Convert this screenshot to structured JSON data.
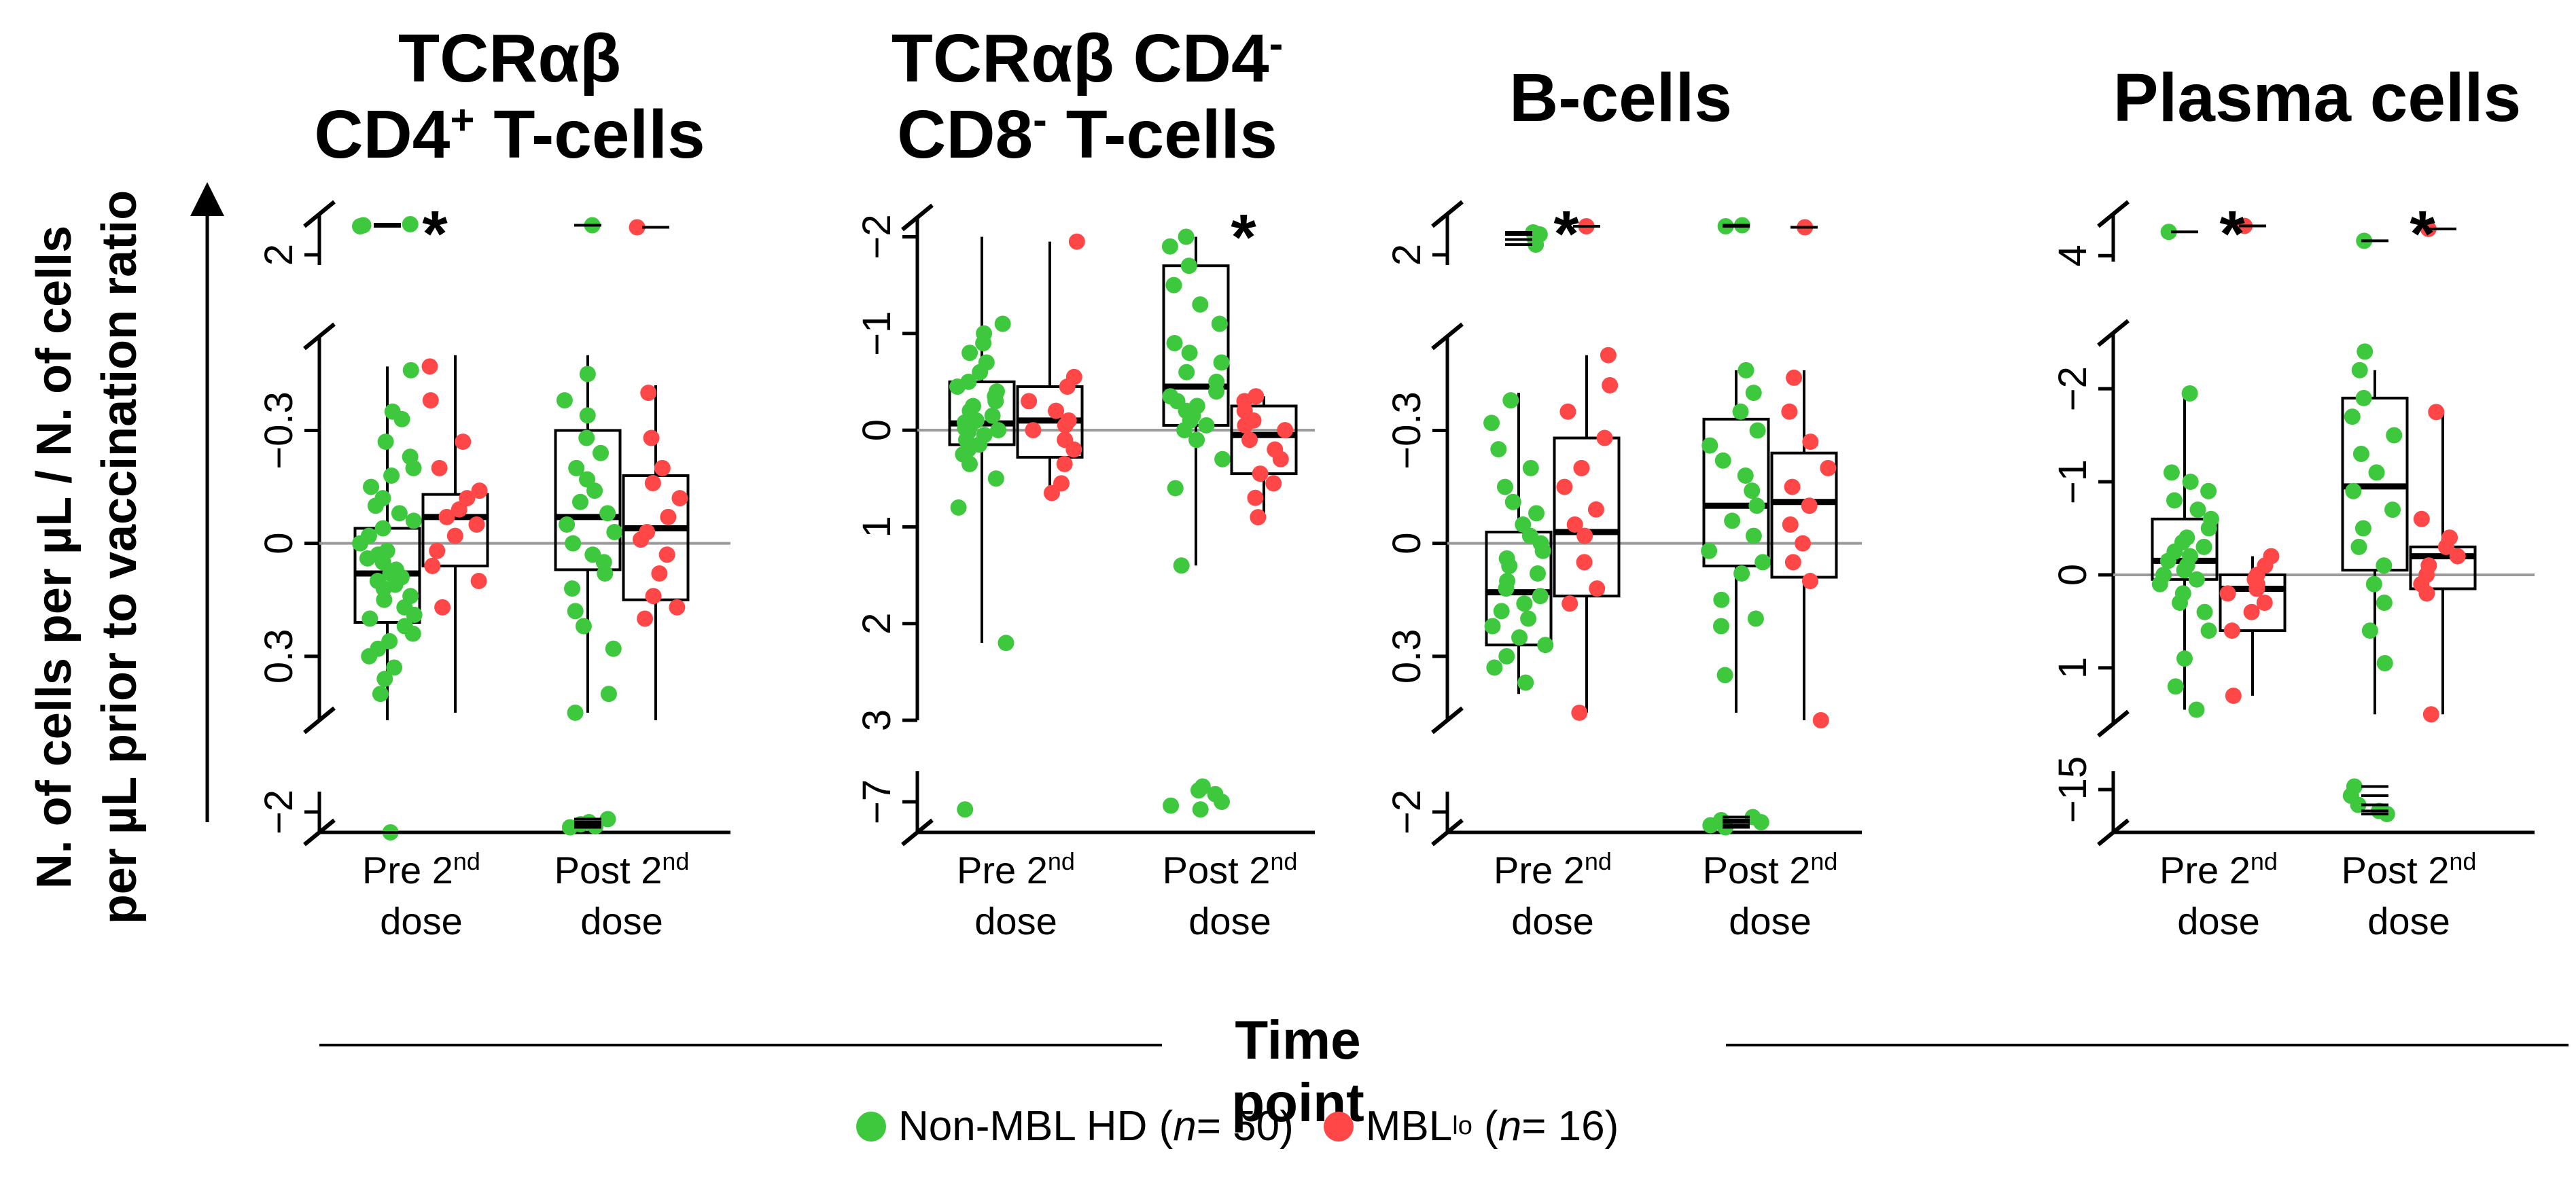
{
  "figure": {
    "y_axis_label_line1": "N. of cells per µL / N. of cells",
    "y_axis_label_line2": "per µL prior to vaccination ratio",
    "x_axis_label": "Time point",
    "legend": {
      "group1": {
        "label": "Non-MBL HD",
        "n_text": "n",
        "n_value": " = 50",
        "color": "#3ec83e"
      },
      "group2": {
        "label": "MBL",
        "sup": "lo",
        "n_text": "n",
        "n_value": " = 16",
        "color": "#ff4747"
      }
    },
    "time_points": [
      {
        "line1": "Pre 2",
        "sup": "nd",
        "line2": "dose"
      },
      {
        "line1": "Post 2",
        "sup": "nd",
        "line2": "dose"
      }
    ],
    "colors": {
      "non_mbl": "#3ec83e",
      "mbl": "#ff4747",
      "axis": "#000000",
      "zero_line": "#9a9a9a"
    }
  },
  "chart_data": [
    {
      "type": "box",
      "title_line1": "TCRαβ",
      "title_line2_prefix": "CD4",
      "title_line2_sup": "+",
      "title_line2_suffix": " T-cells",
      "segments": [
        {
          "range": [
            -2.2,
            -1.8
          ],
          "ticks": [
            {
              "v": -2,
              "label": "−2"
            }
          ]
        },
        {
          "range": [
            -0.55,
            0.47
          ],
          "ticks": [
            {
              "v": -0.3,
              "label": "−0.3"
            },
            {
              "v": 0,
              "label": "0"
            },
            {
              "v": 0.3,
              "label": "0.3"
            }
          ]
        },
        {
          "range": [
            1.6,
            2.1
          ],
          "ticks": [
            {
              "v": 2,
              "label": "2"
            }
          ]
        }
      ],
      "significance": [
        "*",
        ""
      ],
      "groups": [
        {
          "time": "Pre 2nd dose",
          "series": "Non-MBL HD",
          "min": -0.47,
          "q1": -0.04,
          "median": 0.08,
          "q3": 0.21,
          "max": 0.47,
          "points": [
            1.72,
            1.7,
            1.71,
            -1.8,
            0.4,
            0.36,
            0.33,
            0.3,
            0.28,
            0.26,
            0.24,
            0.22,
            0.2,
            0.19,
            0.17,
            0.15,
            0.14,
            0.12,
            0.11,
            0.1,
            0.09,
            0.08,
            0.07,
            0.05,
            0.04,
            0.03,
            0.02,
            0.0,
            -0.02,
            -0.04,
            -0.06,
            -0.08,
            -0.1,
            -0.12,
            -0.15,
            -0.18,
            -0.2,
            -0.23,
            -0.27,
            -0.33,
            -0.35,
            -0.46
          ]
        },
        {
          "time": "Pre 2nd dose",
          "series": "MBLlo",
          "min": -0.5,
          "q1": -0.13,
          "median": -0.07,
          "q3": 0.06,
          "max": 0.45,
          "points": [
            0.17,
            0.1,
            0.06,
            0.02,
            -0.02,
            -0.05,
            -0.07,
            -0.09,
            -0.12,
            -0.14,
            -0.2,
            -0.27,
            -0.38,
            -0.47
          ]
        },
        {
          "time": "Post 2nd dose",
          "series": "Non-MBL HD",
          "min": -0.5,
          "q1": -0.3,
          "median": -0.07,
          "q3": 0.07,
          "max": 0.45,
          "points": [
            1.71,
            -1.85,
            -1.9,
            -1.88,
            -1.93,
            -1.86,
            0.45,
            0.4,
            0.28,
            0.22,
            0.18,
            0.12,
            0.08,
            0.05,
            0.03,
            0.0,
            -0.03,
            -0.05,
            -0.08,
            -0.11,
            -0.14,
            -0.17,
            -0.2,
            -0.24,
            -0.28,
            -0.34,
            -0.38,
            -0.45
          ]
        },
        {
          "time": "Post 2nd dose",
          "series": "MBLlo",
          "min": -0.42,
          "q1": -0.18,
          "median": -0.04,
          "q3": 0.15,
          "max": 0.5,
          "points": [
            1.73,
            0.2,
            0.17,
            0.14,
            0.08,
            0.03,
            -0.01,
            -0.03,
            -0.07,
            -0.12,
            -0.16,
            -0.2,
            -0.28,
            -0.4
          ]
        }
      ]
    },
    {
      "type": "box",
      "title_line1_prefix": "TCRαβ CD4",
      "title_line1_sup": "-",
      "title_line2_prefix": "CD8",
      "title_line2_sup": "-",
      "title_line2_suffix": " T-cells",
      "segments": [
        {
          "range": [
            -7.4,
            -6.6
          ],
          "ticks": [
            {
              "v": -7,
              "label": "−7"
            }
          ]
        },
        {
          "range": [
            -2.2,
            3.0
          ],
          "ticks": [
            {
              "v": -2,
              "label": "−2"
            },
            {
              "v": -1,
              "label": "−1"
            },
            {
              "v": 0,
              "label": "0"
            },
            {
              "v": 1,
              "label": "1"
            },
            {
              "v": 2,
              "label": "2"
            },
            {
              "v": 3,
              "label": "3"
            }
          ]
        }
      ],
      "significance": [
        "",
        "*"
      ],
      "groups": [
        {
          "time": "Pre 2nd dose",
          "series": "Non-MBL HD",
          "min": -2.0,
          "q1": -0.5,
          "median": -0.07,
          "q3": 0.15,
          "max": 2.2,
          "points": [
            2.2,
            -6.9,
            0.8,
            0.5,
            0.35,
            0.25,
            0.2,
            0.15,
            0.1,
            0.05,
            0.02,
            0.0,
            -0.02,
            -0.05,
            -0.08,
            -0.1,
            -0.12,
            -0.15,
            -0.2,
            -0.25,
            -0.3,
            -0.35,
            -0.4,
            -0.45,
            -0.5,
            -0.6,
            -0.7,
            -0.8,
            -0.9,
            -1.0,
            -1.1
          ]
        },
        {
          "time": "Pre 2nd dose",
          "series": "MBLlo",
          "min": -1.95,
          "q1": -0.45,
          "median": -0.1,
          "q3": 0.28,
          "max": 0.65,
          "points": [
            0.65,
            0.55,
            0.35,
            0.2,
            0.1,
            0.0,
            -0.05,
            -0.1,
            -0.2,
            -0.3,
            -0.45,
            -0.55,
            -1.95
          ]
        },
        {
          "time": "Post 2nd dose",
          "series": "Non-MBL HD",
          "min": -2.0,
          "q1": -1.7,
          "median": -0.45,
          "q3": -0.05,
          "max": 1.4,
          "points": [
            1.4,
            0.6,
            0.3,
            0.1,
            0.0,
            -0.05,
            -0.1,
            -0.15,
            -0.2,
            -0.25,
            -0.3,
            -0.35,
            -0.4,
            -0.5,
            -0.6,
            -0.7,
            -0.8,
            -0.9,
            -1.1,
            -1.3,
            -1.5,
            -1.7,
            -1.9,
            -2.0,
            -6.9,
            -7.0,
            -7.1,
            -7.2,
            -7.15,
            -6.95
          ]
        },
        {
          "time": "Post 2nd dose",
          "series": "MBLlo",
          "min": -0.35,
          "q1": -0.25,
          "median": 0.05,
          "q3": 0.45,
          "max": 0.9,
          "points": [
            0.9,
            0.7,
            0.55,
            0.45,
            0.3,
            0.2,
            0.1,
            0.0,
            -0.05,
            -0.1,
            -0.2,
            -0.3,
            -0.35
          ]
        }
      ]
    },
    {
      "type": "box",
      "title_line1": "B-cells",
      "segments": [
        {
          "range": [
            -2.2,
            -1.8
          ],
          "ticks": [
            {
              "v": -2,
              "label": "−2"
            }
          ]
        },
        {
          "range": [
            -0.55,
            0.47
          ],
          "ticks": [
            {
              "v": -0.3,
              "label": "−0.3"
            },
            {
              "v": 0,
              "label": "0"
            },
            {
              "v": 0.3,
              "label": "0.3"
            }
          ]
        },
        {
          "range": [
            1.6,
            2.1
          ],
          "ticks": [
            {
              "v": 2,
              "label": "2"
            }
          ]
        }
      ],
      "significance": [
        "*",
        ""
      ],
      "groups": [
        {
          "time": "Pre 2nd dose",
          "series": "Non-MBL HD",
          "min": -0.4,
          "q1": -0.03,
          "median": 0.13,
          "q3": 0.27,
          "max": 0.4,
          "points": [
            1.9,
            1.85,
            1.8,
            1.78,
            0.37,
            0.33,
            0.3,
            0.27,
            0.25,
            0.22,
            0.2,
            0.18,
            0.16,
            0.14,
            0.12,
            0.1,
            0.08,
            0.06,
            0.04,
            0.02,
            0.0,
            -0.02,
            -0.05,
            -0.08,
            -0.11,
            -0.15,
            -0.2,
            -0.25,
            -0.32,
            -0.38
          ]
        },
        {
          "time": "Pre 2nd dose",
          "series": "MBLlo",
          "min": -0.5,
          "q1": -0.28,
          "median": -0.03,
          "q3": 0.14,
          "max": 0.45,
          "points": [
            1.72,
            0.45,
            0.16,
            0.12,
            0.05,
            -0.02,
            -0.05,
            -0.09,
            -0.15,
            -0.2,
            -0.28,
            -0.35,
            -0.42,
            -0.5
          ]
        },
        {
          "time": "Post 2nd dose",
          "series": "Non-MBL HD",
          "min": -0.46,
          "q1": -0.33,
          "median": -0.1,
          "q3": 0.06,
          "max": 0.45,
          "points": [
            1.72,
            1.71,
            -1.85,
            -1.9,
            -1.95,
            -1.87,
            -1.92,
            0.35,
            0.22,
            0.2,
            0.15,
            0.08,
            0.05,
            0.02,
            -0.02,
            -0.06,
            -0.1,
            -0.14,
            -0.18,
            -0.22,
            -0.26,
            -0.3,
            -0.35,
            -0.4,
            -0.46
          ]
        },
        {
          "time": "Post 2nd dose",
          "series": "MBLlo",
          "min": -0.46,
          "q1": -0.24,
          "median": -0.11,
          "q3": 0.09,
          "max": 0.47,
          "points": [
            1.73,
            0.47,
            0.1,
            0.05,
            0.0,
            -0.05,
            -0.1,
            -0.15,
            -0.2,
            -0.27,
            -0.35,
            -0.44
          ]
        }
      ]
    },
    {
      "type": "box",
      "title_line1": "Plasma cells",
      "segments": [
        {
          "range": [
            -15.6,
            -13.6
          ],
          "ticks": [
            {
              "v": -15,
              "label": "−15"
            }
          ]
        },
        {
          "range": [
            -2.6,
            1.6
          ],
          "ticks": [
            {
              "v": -2,
              "label": "−2"
            },
            {
              "v": -1,
              "label": "−1"
            },
            {
              "v": 0,
              "label": "0"
            },
            {
              "v": 1,
              "label": "1"
            }
          ]
        },
        {
          "range": [
            2.6,
            4.2
          ],
          "ticks": [
            {
              "v": 4,
              "label": "4"
            }
          ]
        }
      ],
      "significance": [
        "*",
        "*"
      ],
      "groups": [
        {
          "time": "Pre 2nd dose",
          "series": "Non-MBL HD",
          "min": -1.95,
          "q1": -0.6,
          "median": -0.15,
          "q3": 0.05,
          "max": 1.45,
          "points": [
            3.2,
            1.45,
            1.2,
            0.9,
            0.6,
            0.4,
            0.3,
            0.2,
            0.1,
            0.05,
            0.0,
            -0.05,
            -0.1,
            -0.15,
            -0.2,
            -0.25,
            -0.3,
            -0.35,
            -0.4,
            -0.5,
            -0.6,
            -0.7,
            -0.8,
            -0.9,
            -1.0,
            -1.1,
            -1.95
          ]
        },
        {
          "time": "Pre 2nd dose",
          "series": "MBLlo",
          "min": -0.2,
          "q1": 0.0,
          "median": 0.15,
          "q3": 0.6,
          "max": 1.3,
          "points": [
            3.0,
            1.3,
            0.6,
            0.4,
            0.3,
            0.2,
            0.15,
            0.1,
            0.05,
            0.0,
            -0.1,
            -0.2
          ]
        },
        {
          "time": "Post 2nd dose",
          "series": "Non-MBL HD",
          "min": -2.2,
          "q1": -1.9,
          "median": -0.95,
          "q3": -0.05,
          "max": 1.5,
          "points": [
            3.5,
            0.95,
            0.6,
            0.3,
            0.1,
            -0.1,
            -0.3,
            -0.5,
            -0.7,
            -0.9,
            -1.1,
            -1.3,
            -1.5,
            -1.7,
            -1.9,
            -2.2,
            -2.4,
            -14.2,
            -14.5,
            -14.8,
            -15.1,
            -14.3
          ]
        },
        {
          "time": "Post 2nd dose",
          "series": "MBLlo",
          "min": -1.75,
          "q1": -0.3,
          "median": -0.2,
          "q3": 0.15,
          "max": 1.5,
          "points": [
            3.1,
            1.5,
            0.2,
            0.1,
            0.0,
            -0.1,
            -0.2,
            -0.3,
            -0.4,
            -0.6,
            -1.75
          ]
        }
      ]
    }
  ]
}
